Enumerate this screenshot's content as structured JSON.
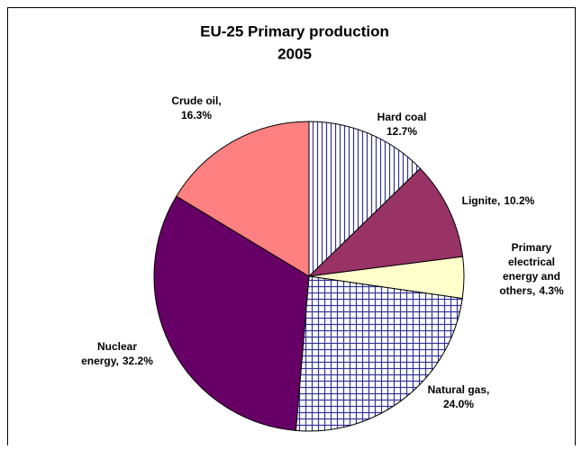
{
  "chart_data": {
    "type": "pie",
    "title": "EU-25 Primary production",
    "subtitle": "2005",
    "categories": [
      "Hard coal ,",
      "Lignite,",
      "Primary electrical energy and others,",
      "Natural gas,",
      "Nuclear energy,",
      "Crude oil,"
    ],
    "values": [
      12.7,
      10.2,
      4.3,
      24.0,
      32.2,
      16.3
    ],
    "value_labels": [
      "12.7%",
      "10.2%",
      "4.3%",
      "24.0%",
      "32.2%",
      "16.3%"
    ],
    "colors": [
      "#333399",
      "#993366",
      "#FFFFCC",
      "#333399",
      "#660066",
      "#FF8080"
    ],
    "fill_patterns": [
      "vertical",
      null,
      null,
      "grid",
      null,
      null
    ]
  }
}
